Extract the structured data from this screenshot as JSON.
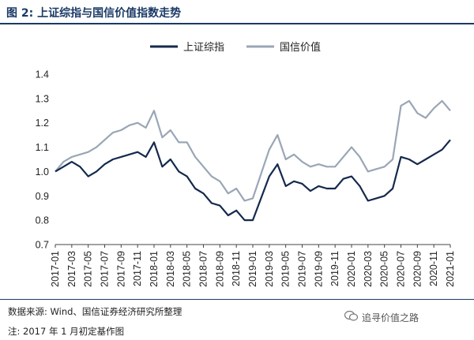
{
  "title": "图 2: 上证综指与国信价值指数走势",
  "source": "数据来源: Wind、国信证券经济研究所整理",
  "note": "注: 2017 年 1 月初定基作图",
  "watermark": "追寻价值之路",
  "colors": {
    "series1": "#14294d",
    "series2": "#9aa6b6",
    "accent": "#1b3a66"
  },
  "chart_data": {
    "type": "line",
    "title": "图 2: 上证综指与国信价值指数走势",
    "xlabel": "",
    "ylabel": "",
    "ylim": [
      0.7,
      1.4
    ],
    "yticks": [
      "0.7",
      "0.8",
      "0.9",
      "1.0",
      "1.1",
      "1.2",
      "1.3",
      "1.4"
    ],
    "grid": false,
    "legend": "top",
    "x_ticks": [
      "2017-01",
      "2017-03",
      "2017-05",
      "2017-07",
      "2017-09",
      "2017-11",
      "2018-01",
      "2018-03",
      "2018-05",
      "2018-07",
      "2018-09",
      "2018-11",
      "2019-01",
      "2019-03",
      "2019-05",
      "2019-07",
      "2019-09",
      "2019-11",
      "2020-01",
      "2020-03",
      "2020-05",
      "2020-07",
      "2020-09",
      "2020-11",
      "2021-01"
    ],
    "x": [
      "2017-01",
      "2017-02",
      "2017-03",
      "2017-04",
      "2017-05",
      "2017-06",
      "2017-07",
      "2017-08",
      "2017-09",
      "2017-10",
      "2017-11",
      "2017-12",
      "2018-01",
      "2018-02",
      "2018-03",
      "2018-04",
      "2018-05",
      "2018-06",
      "2018-07",
      "2018-08",
      "2018-09",
      "2018-10",
      "2018-11",
      "2018-12",
      "2019-01",
      "2019-02",
      "2019-03",
      "2019-04",
      "2019-05",
      "2019-06",
      "2019-07",
      "2019-08",
      "2019-09",
      "2019-10",
      "2019-11",
      "2019-12",
      "2020-01",
      "2020-02",
      "2020-03",
      "2020-04",
      "2020-05",
      "2020-06",
      "2020-07",
      "2020-08",
      "2020-09",
      "2020-10",
      "2020-11",
      "2020-12",
      "2021-01"
    ],
    "series": [
      {
        "name": "上证综指",
        "values": [
          1.0,
          1.02,
          1.04,
          1.02,
          0.98,
          1.0,
          1.03,
          1.05,
          1.06,
          1.07,
          1.08,
          1.06,
          1.12,
          1.02,
          1.05,
          1.0,
          0.98,
          0.93,
          0.91,
          0.87,
          0.86,
          0.82,
          0.84,
          0.8,
          0.8,
          0.89,
          0.98,
          1.03,
          0.94,
          0.96,
          0.95,
          0.92,
          0.94,
          0.93,
          0.93,
          0.97,
          0.98,
          0.94,
          0.88,
          0.89,
          0.9,
          0.93,
          1.06,
          1.05,
          1.03,
          1.05,
          1.07,
          1.09,
          1.13
        ]
      },
      {
        "name": "国信价值",
        "values": [
          1.0,
          1.04,
          1.06,
          1.07,
          1.08,
          1.1,
          1.13,
          1.16,
          1.17,
          1.19,
          1.2,
          1.18,
          1.25,
          1.14,
          1.17,
          1.12,
          1.12,
          1.06,
          1.02,
          0.98,
          0.96,
          0.91,
          0.93,
          0.88,
          0.89,
          0.99,
          1.09,
          1.15,
          1.05,
          1.07,
          1.04,
          1.02,
          1.03,
          1.02,
          1.02,
          1.06,
          1.1,
          1.06,
          1.0,
          1.01,
          1.02,
          1.05,
          1.27,
          1.29,
          1.24,
          1.22,
          1.26,
          1.29,
          1.25
        ]
      }
    ]
  }
}
